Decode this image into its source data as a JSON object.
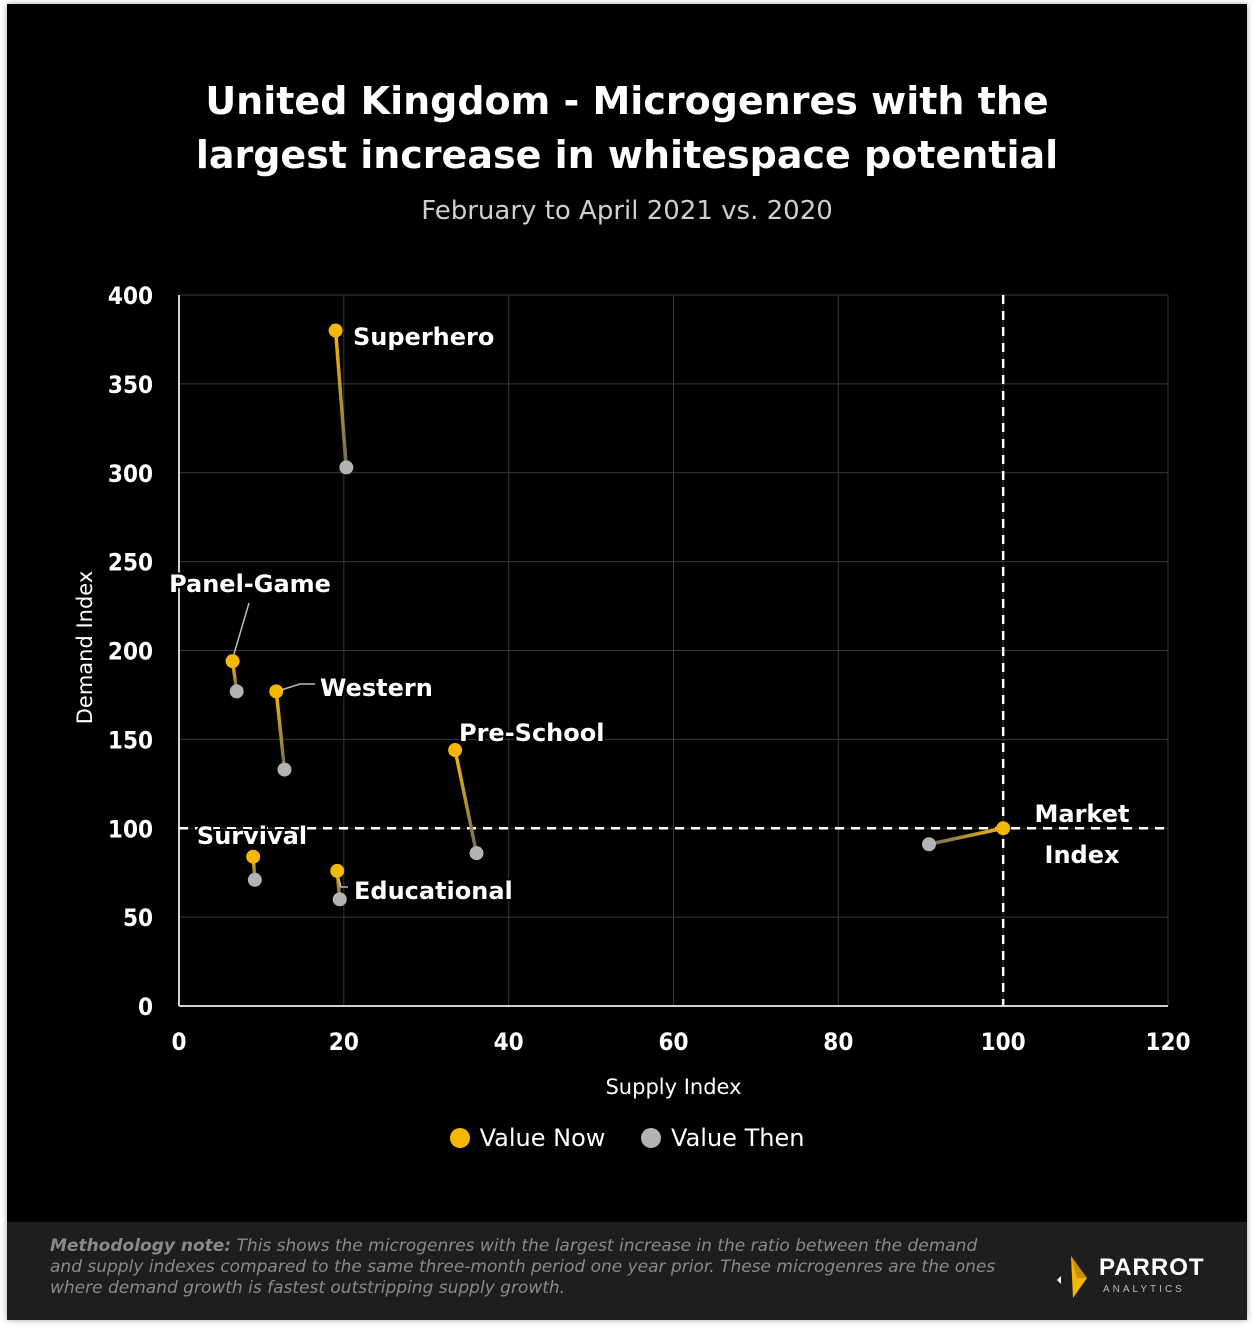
{
  "colors": {
    "now": "#f5b800",
    "then": "#b3b3b3",
    "background": "#000000",
    "grid": "#3a3a3a"
  },
  "chart_data": {
    "type": "scatter",
    "title_line1": "United Kingdom - Microgenres with the",
    "title_line2": "largest increase in whitespace potential",
    "subtitle": "February to April 2021 vs. 2020",
    "xlabel": "Supply Index",
    "ylabel": "Demand Index",
    "xlim": [
      0,
      120
    ],
    "ylim": [
      0,
      400
    ],
    "x_ticks": [
      0,
      20,
      40,
      60,
      80,
      100,
      120
    ],
    "y_ticks": [
      0,
      50,
      100,
      150,
      200,
      250,
      300,
      350,
      400
    ],
    "grid": true,
    "reference_lines": {
      "x": 100,
      "y": 100,
      "style": "dashed"
    },
    "legend": {
      "position": "bottom",
      "now_label": "Value Now",
      "then_label": "Value Then"
    },
    "points": [
      {
        "name": "Superhero",
        "now": {
          "x": 19.0,
          "y": 380
        },
        "then": {
          "x": 20.3,
          "y": 303
        }
      },
      {
        "name": "Panel-Game",
        "now": {
          "x": 6.5,
          "y": 194
        },
        "then": {
          "x": 7.0,
          "y": 177
        }
      },
      {
        "name": "Western",
        "now": {
          "x": 11.8,
          "y": 177
        },
        "then": {
          "x": 12.8,
          "y": 133
        }
      },
      {
        "name": "Pre-School",
        "now": {
          "x": 33.5,
          "y": 144
        },
        "then": {
          "x": 36.1,
          "y": 86
        }
      },
      {
        "name": "Survival",
        "now": {
          "x": 9.0,
          "y": 84
        },
        "then": {
          "x": 9.2,
          "y": 71
        }
      },
      {
        "name": "Educational",
        "now": {
          "x": 19.2,
          "y": 76
        },
        "then": {
          "x": 19.5,
          "y": 60
        }
      },
      {
        "name": "Market Index",
        "label_line1": "Market",
        "label_line2": "Index",
        "now": {
          "x": 100,
          "y": 100
        },
        "then": {
          "x": 91,
          "y": 91
        }
      }
    ]
  },
  "footer": {
    "methodology_label": "Methodology note:",
    "methodology_text": " This shows the microgenres with the largest increase in the ratio between the demand and supply indexes compared to the same three-month period one year prior. These microgenres are the ones where demand growth is fastest outstripping supply growth.",
    "logo_name": "PARROT",
    "logo_sub": "ANALYTICS"
  }
}
